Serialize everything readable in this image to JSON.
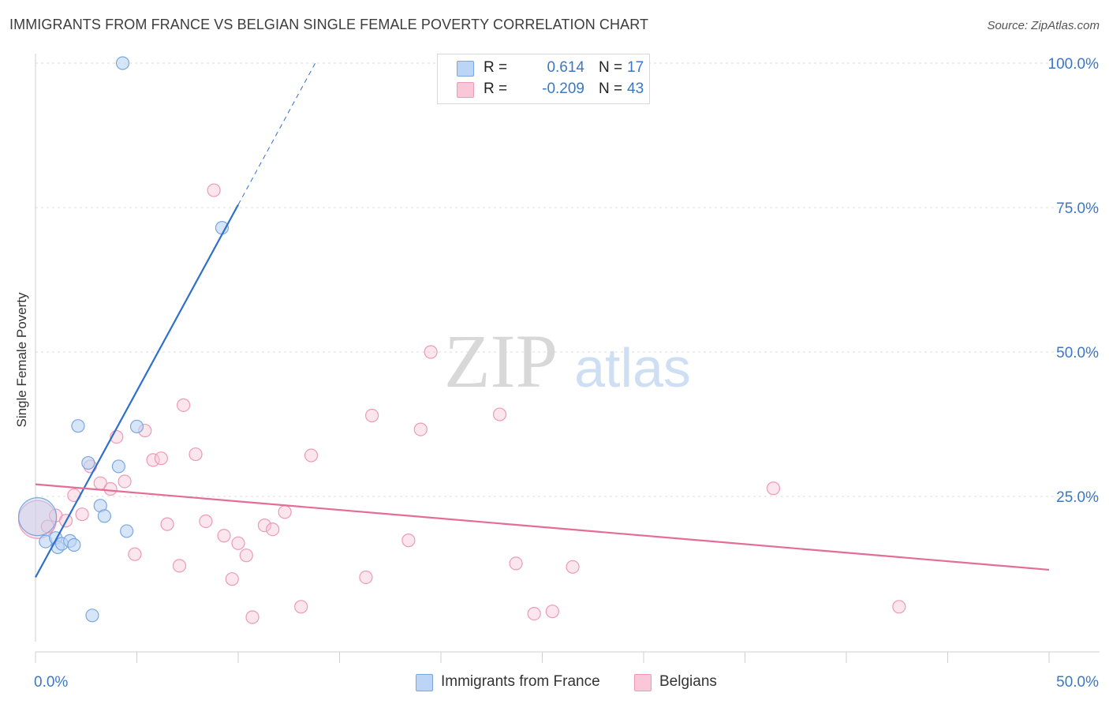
{
  "title": "IMMIGRANTS FROM FRANCE VS BELGIAN SINGLE FEMALE POVERTY CORRELATION CHART",
  "source": "Source: ZipAtlas.com",
  "watermark": {
    "zip": "ZIP",
    "atlas": "atlas"
  },
  "colors": {
    "france_fill": "#bcd4f5",
    "france_stroke": "#7aa6e0",
    "france_line": "#2f6fcc",
    "belg_fill": "#f9c7d8",
    "belg_stroke": "#ec9ab6",
    "belg_line": "#e36d97",
    "axis_label": "#3b78c4",
    "grid": "#dcdcdc"
  },
  "legend": {
    "rows": [
      {
        "r_label": "R =",
        "r_value": "0.614",
        "n_label": "N =",
        "n_value": "17",
        "series": "france"
      },
      {
        "r_label": "R =",
        "r_value": "-0.209",
        "n_label": "N =",
        "n_value": "43",
        "series": "belgians"
      }
    ]
  },
  "bottom_legend": [
    "Immigrants from France",
    "Belgians"
  ],
  "chart_data": {
    "type": "scatter",
    "title": "IMMIGRANTS FROM FRANCE VS BELGIAN SINGLE FEMALE POVERTY CORRELATION CHART",
    "xlabel": "",
    "ylabel": "Single Female Poverty",
    "xlim": [
      0,
      50
    ],
    "ylim": [
      0,
      102
    ],
    "x_tick_labels": [
      "0.0%",
      "50.0%"
    ],
    "y_tick_labels": [
      "25.0%",
      "50.0%",
      "75.0%",
      "100.0%"
    ],
    "y_ticks": [
      25,
      50,
      75,
      100
    ],
    "series": [
      {
        "name": "Immigrants from France",
        "r": 0.614,
        "n": 17,
        "trend": {
          "x": [
            0,
            10
          ],
          "y": [
            11,
            75.5
          ],
          "dashed_to": [
            13.8,
            100
          ]
        },
        "points": [
          {
            "x": 0.1,
            "y": 21.5,
            "big": true
          },
          {
            "x": 0.5,
            "y": 17.2
          },
          {
            "x": 1.0,
            "y": 17.8
          },
          {
            "x": 1.1,
            "y": 16.2
          },
          {
            "x": 1.3,
            "y": 16.8
          },
          {
            "x": 1.7,
            "y": 17.3
          },
          {
            "x": 1.9,
            "y": 16.6
          },
          {
            "x": 2.1,
            "y": 37.2
          },
          {
            "x": 2.6,
            "y": 30.8
          },
          {
            "x": 2.8,
            "y": 4.4
          },
          {
            "x": 3.2,
            "y": 23.4
          },
          {
            "x": 3.4,
            "y": 21.6
          },
          {
            "x": 4.1,
            "y": 30.2
          },
          {
            "x": 4.5,
            "y": 19.0
          },
          {
            "x": 5.0,
            "y": 37.1
          },
          {
            "x": 4.3,
            "y": 100.0
          },
          {
            "x": 9.2,
            "y": 71.5
          }
        ]
      },
      {
        "name": "Belgians",
        "r": -0.209,
        "n": 43,
        "trend": {
          "x": [
            0,
            50
          ],
          "y": [
            27.1,
            12.3
          ]
        },
        "points": [
          {
            "x": 0.1,
            "y": 21.0,
            "big": true
          },
          {
            "x": 0.6,
            "y": 19.8
          },
          {
            "x": 1.0,
            "y": 21.7
          },
          {
            "x": 1.5,
            "y": 20.8
          },
          {
            "x": 1.9,
            "y": 25.2
          },
          {
            "x": 2.3,
            "y": 21.9
          },
          {
            "x": 2.7,
            "y": 30.2
          },
          {
            "x": 3.2,
            "y": 27.3
          },
          {
            "x": 3.7,
            "y": 26.3
          },
          {
            "x": 4.0,
            "y": 35.3
          },
          {
            "x": 4.4,
            "y": 27.6
          },
          {
            "x": 4.9,
            "y": 15.0
          },
          {
            "x": 5.4,
            "y": 36.4
          },
          {
            "x": 5.8,
            "y": 31.3
          },
          {
            "x": 6.2,
            "y": 31.6
          },
          {
            "x": 6.5,
            "y": 20.2
          },
          {
            "x": 7.1,
            "y": 13.0
          },
          {
            "x": 7.3,
            "y": 40.8
          },
          {
            "x": 7.9,
            "y": 32.3
          },
          {
            "x": 8.4,
            "y": 20.7
          },
          {
            "x": 8.8,
            "y": 78.0
          },
          {
            "x": 9.3,
            "y": 18.2
          },
          {
            "x": 9.7,
            "y": 10.7
          },
          {
            "x": 10.0,
            "y": 16.9
          },
          {
            "x": 10.4,
            "y": 14.8
          },
          {
            "x": 10.7,
            "y": 4.1
          },
          {
            "x": 11.3,
            "y": 20.0
          },
          {
            "x": 11.7,
            "y": 19.3
          },
          {
            "x": 12.3,
            "y": 22.3
          },
          {
            "x": 13.1,
            "y": 5.9
          },
          {
            "x": 13.6,
            "y": 32.1
          },
          {
            "x": 16.3,
            "y": 11.0
          },
          {
            "x": 16.6,
            "y": 39.0
          },
          {
            "x": 18.4,
            "y": 17.4
          },
          {
            "x": 19.0,
            "y": 36.6
          },
          {
            "x": 19.5,
            "y": 50.0
          },
          {
            "x": 22.9,
            "y": 39.2
          },
          {
            "x": 23.7,
            "y": 13.4
          },
          {
            "x": 24.6,
            "y": 4.7
          },
          {
            "x": 25.5,
            "y": 5.1
          },
          {
            "x": 26.5,
            "y": 12.8
          },
          {
            "x": 36.4,
            "y": 26.4
          },
          {
            "x": 42.6,
            "y": 5.9
          }
        ]
      }
    ]
  }
}
